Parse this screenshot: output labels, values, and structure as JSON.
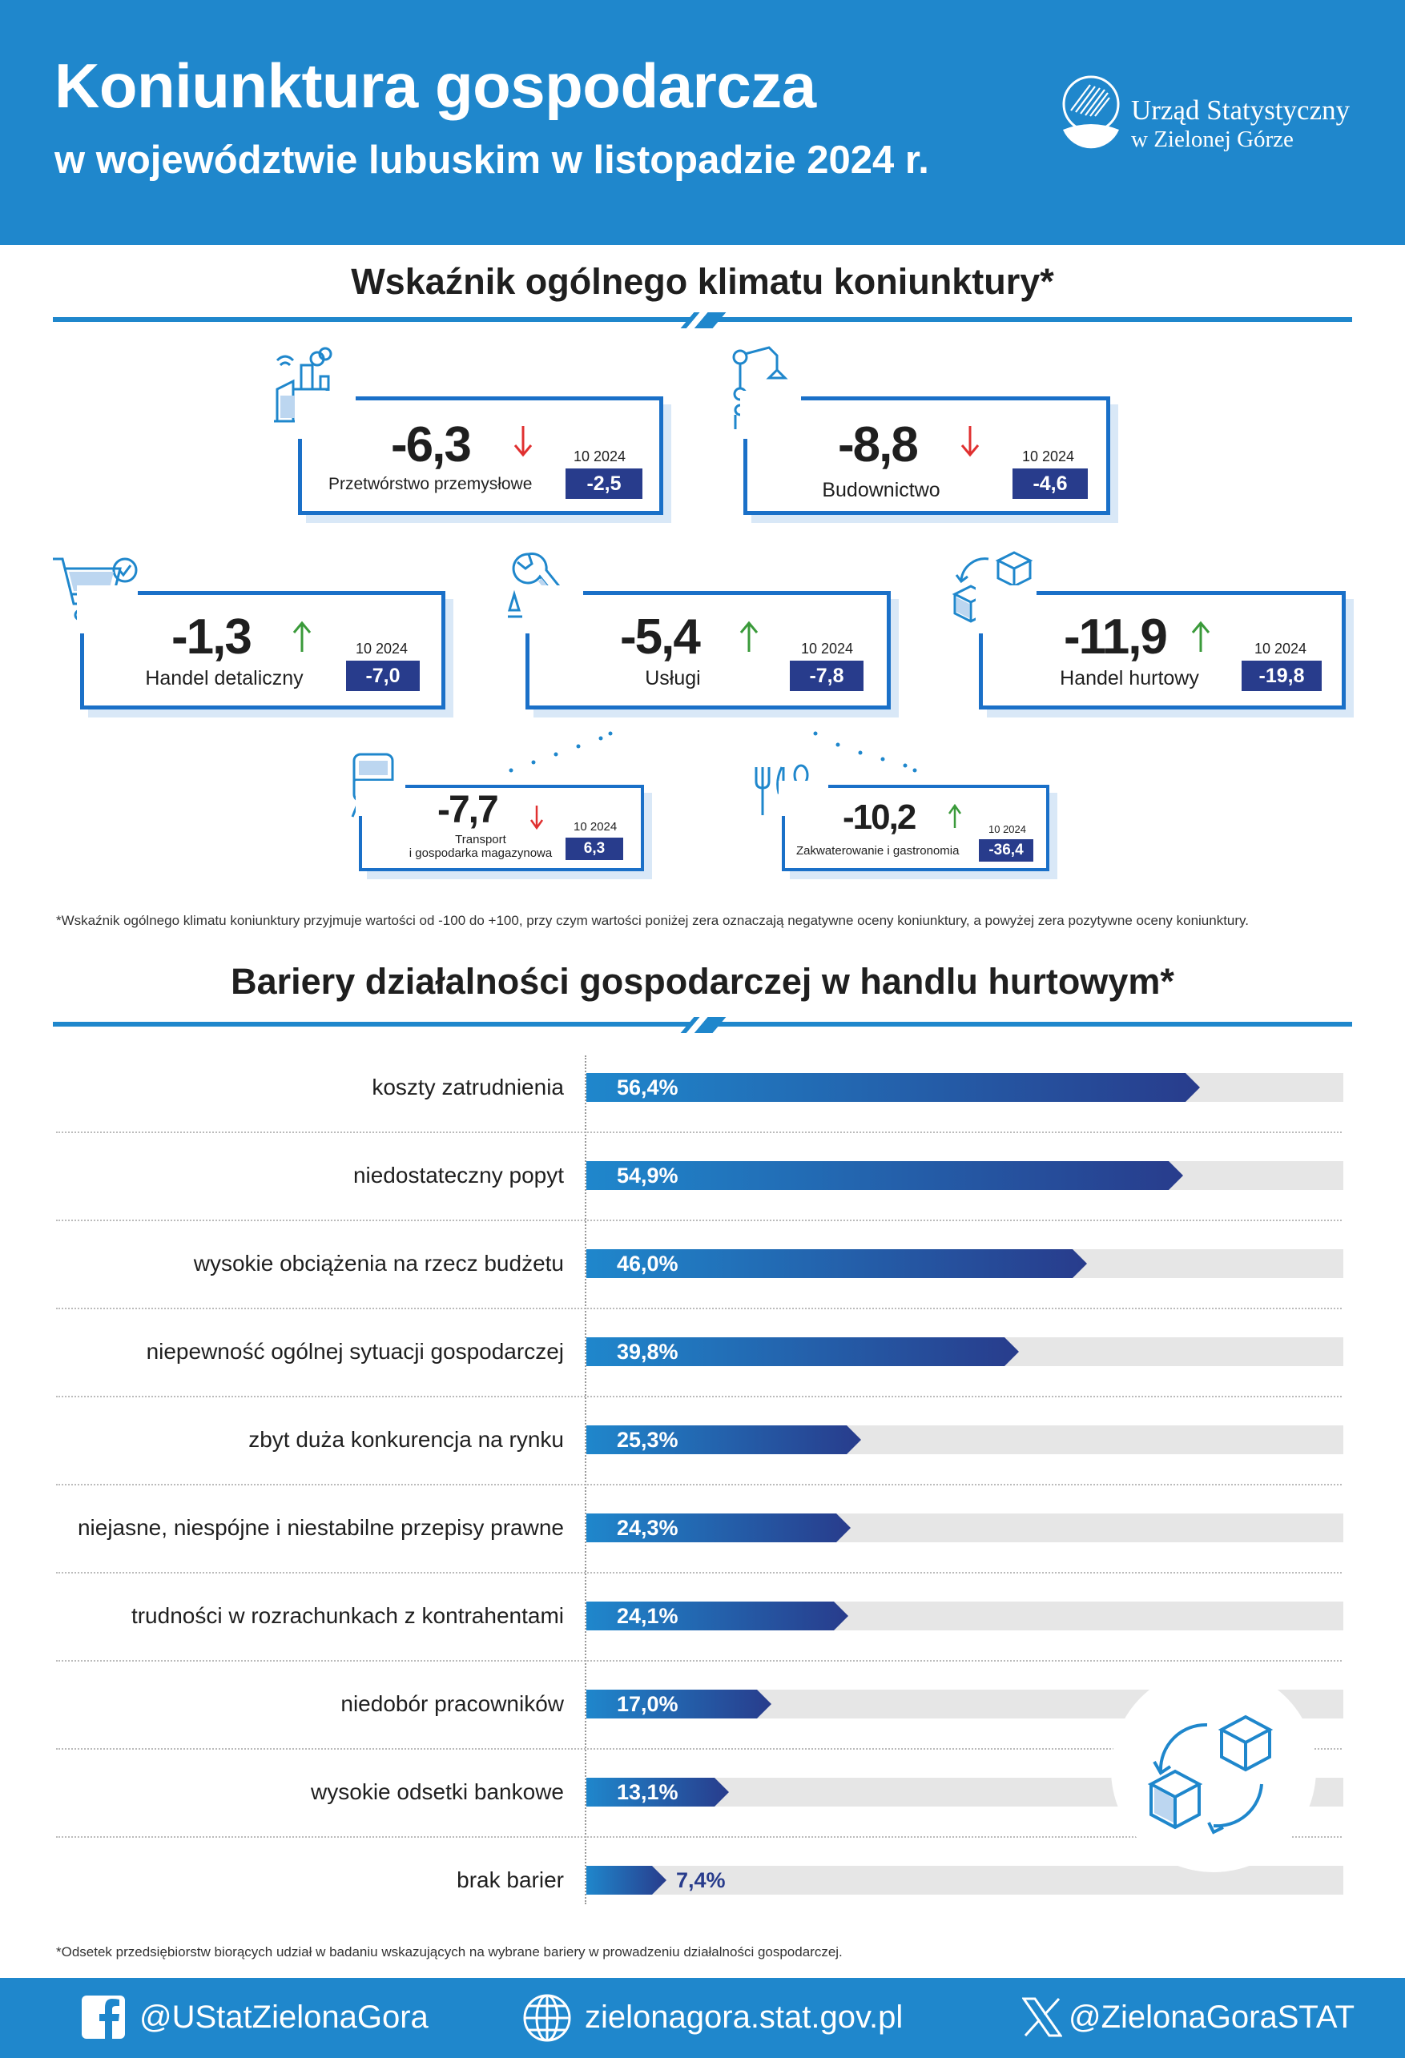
{
  "header": {
    "title_line1": "Koniunktura gospodarcza",
    "title_line2": "w województwie lubuskim w listopadzie 2024 r.",
    "org_line1": "Urząd Statystyczny",
    "org_line2": "w Zielonej Górze",
    "background_color": "#1f87cc"
  },
  "climate": {
    "heading": "Wskaźnik ogólnego klimatu koniunktury*",
    "cards": [
      {
        "label": "Przetwórstwo przemysłowe",
        "value": "-6,3",
        "trend": "down",
        "prev_label": "10 2024",
        "prev_value": "-2,5",
        "icon": "factory-icon"
      },
      {
        "label": "Budownictwo",
        "value": "-8,8",
        "trend": "down",
        "prev_label": "10 2024",
        "prev_value": "-4,6",
        "icon": "crane-icon"
      },
      {
        "label": "Handel detaliczny",
        "value": "-1,3",
        "trend": "up",
        "prev_label": "10 2024",
        "prev_value": "-7,0",
        "icon": "shopping-cart-icon"
      },
      {
        "label": "Usługi",
        "value": "-5,4",
        "trend": "up",
        "prev_label": "10 2024",
        "prev_value": "-7,8",
        "icon": "wrench-icon"
      },
      {
        "label": "Handel hurtowy",
        "value": "-11,9",
        "trend": "up",
        "prev_label": "10 2024",
        "prev_value": "-19,8",
        "icon": "boxes-icon"
      },
      {
        "label_line1": "Transport",
        "label_line2": "i gospodarka magazynowa",
        "value": "-7,7",
        "trend": "down",
        "prev_label": "10 2024",
        "prev_value": "6,3",
        "icon": "train-icon"
      },
      {
        "label": "Zakwaterowanie i gastronomia",
        "value": "-10,2",
        "trend": "up",
        "prev_label": "10 2024",
        "prev_value": "-36,4",
        "icon": "cutlery-icon"
      }
    ],
    "note": "*Wskaźnik ogólnego klimatu koniunktury przyjmuje wartości od -100 do +100, przy czym wartości poniżej zera oznaczają negatywne oceny koniunktury, a powyżej zera pozytywne oceny koniunktury.",
    "colors": {
      "down": "#e03030",
      "up": "#3a9a3a",
      "card_border": "#1a70c8",
      "badge": "#283c8c"
    }
  },
  "barriers": {
    "heading": "Bariery działalności gospodarczej w handlu hurtowym*",
    "note": "*Odsetek przedsiębiorstw biorących udział w badaniu wskazujących na wybrane bariery w prowadzeniu działalności gospodarczej.",
    "value_labels": [
      "56,4%",
      "54,9%",
      "46,0%",
      "39,8%",
      "25,3%",
      "24,3%",
      "24,1%",
      "17,0%",
      "13,1%",
      "7,4%"
    ],
    "decor_icon": "boxes-exchange-icon"
  },
  "chart_data": {
    "type": "bar",
    "orientation": "horizontal",
    "unit": "%",
    "categories": [
      "koszty zatrudnienia",
      "niedostateczny popyt",
      "wysokie obciążenia na rzecz budżetu",
      "niepewność ogólnej sytuacji gospodarczej",
      "zbyt duża konkurencja na rynku",
      "niejasne, niespójne i niestabilne przepisy prawne",
      "trudności w rozrachunkach z kontrahentami",
      "niedobór pracowników",
      "wysokie odsetki bankowe",
      "brak barier"
    ],
    "values": [
      56.4,
      54.9,
      46.0,
      39.8,
      25.3,
      24.3,
      24.1,
      17.0,
      13.1,
      7.4
    ],
    "xlim": [
      0,
      60
    ],
    "bar_color_start": "#1f87cc",
    "bar_color_end": "#283c8c",
    "track_color": "#e6e6e6"
  },
  "footer": {
    "facebook": "@UStatZielonaGora",
    "website": "zielonagora.stat.gov.pl",
    "x_handle": "@ZielonaGoraSTAT"
  }
}
